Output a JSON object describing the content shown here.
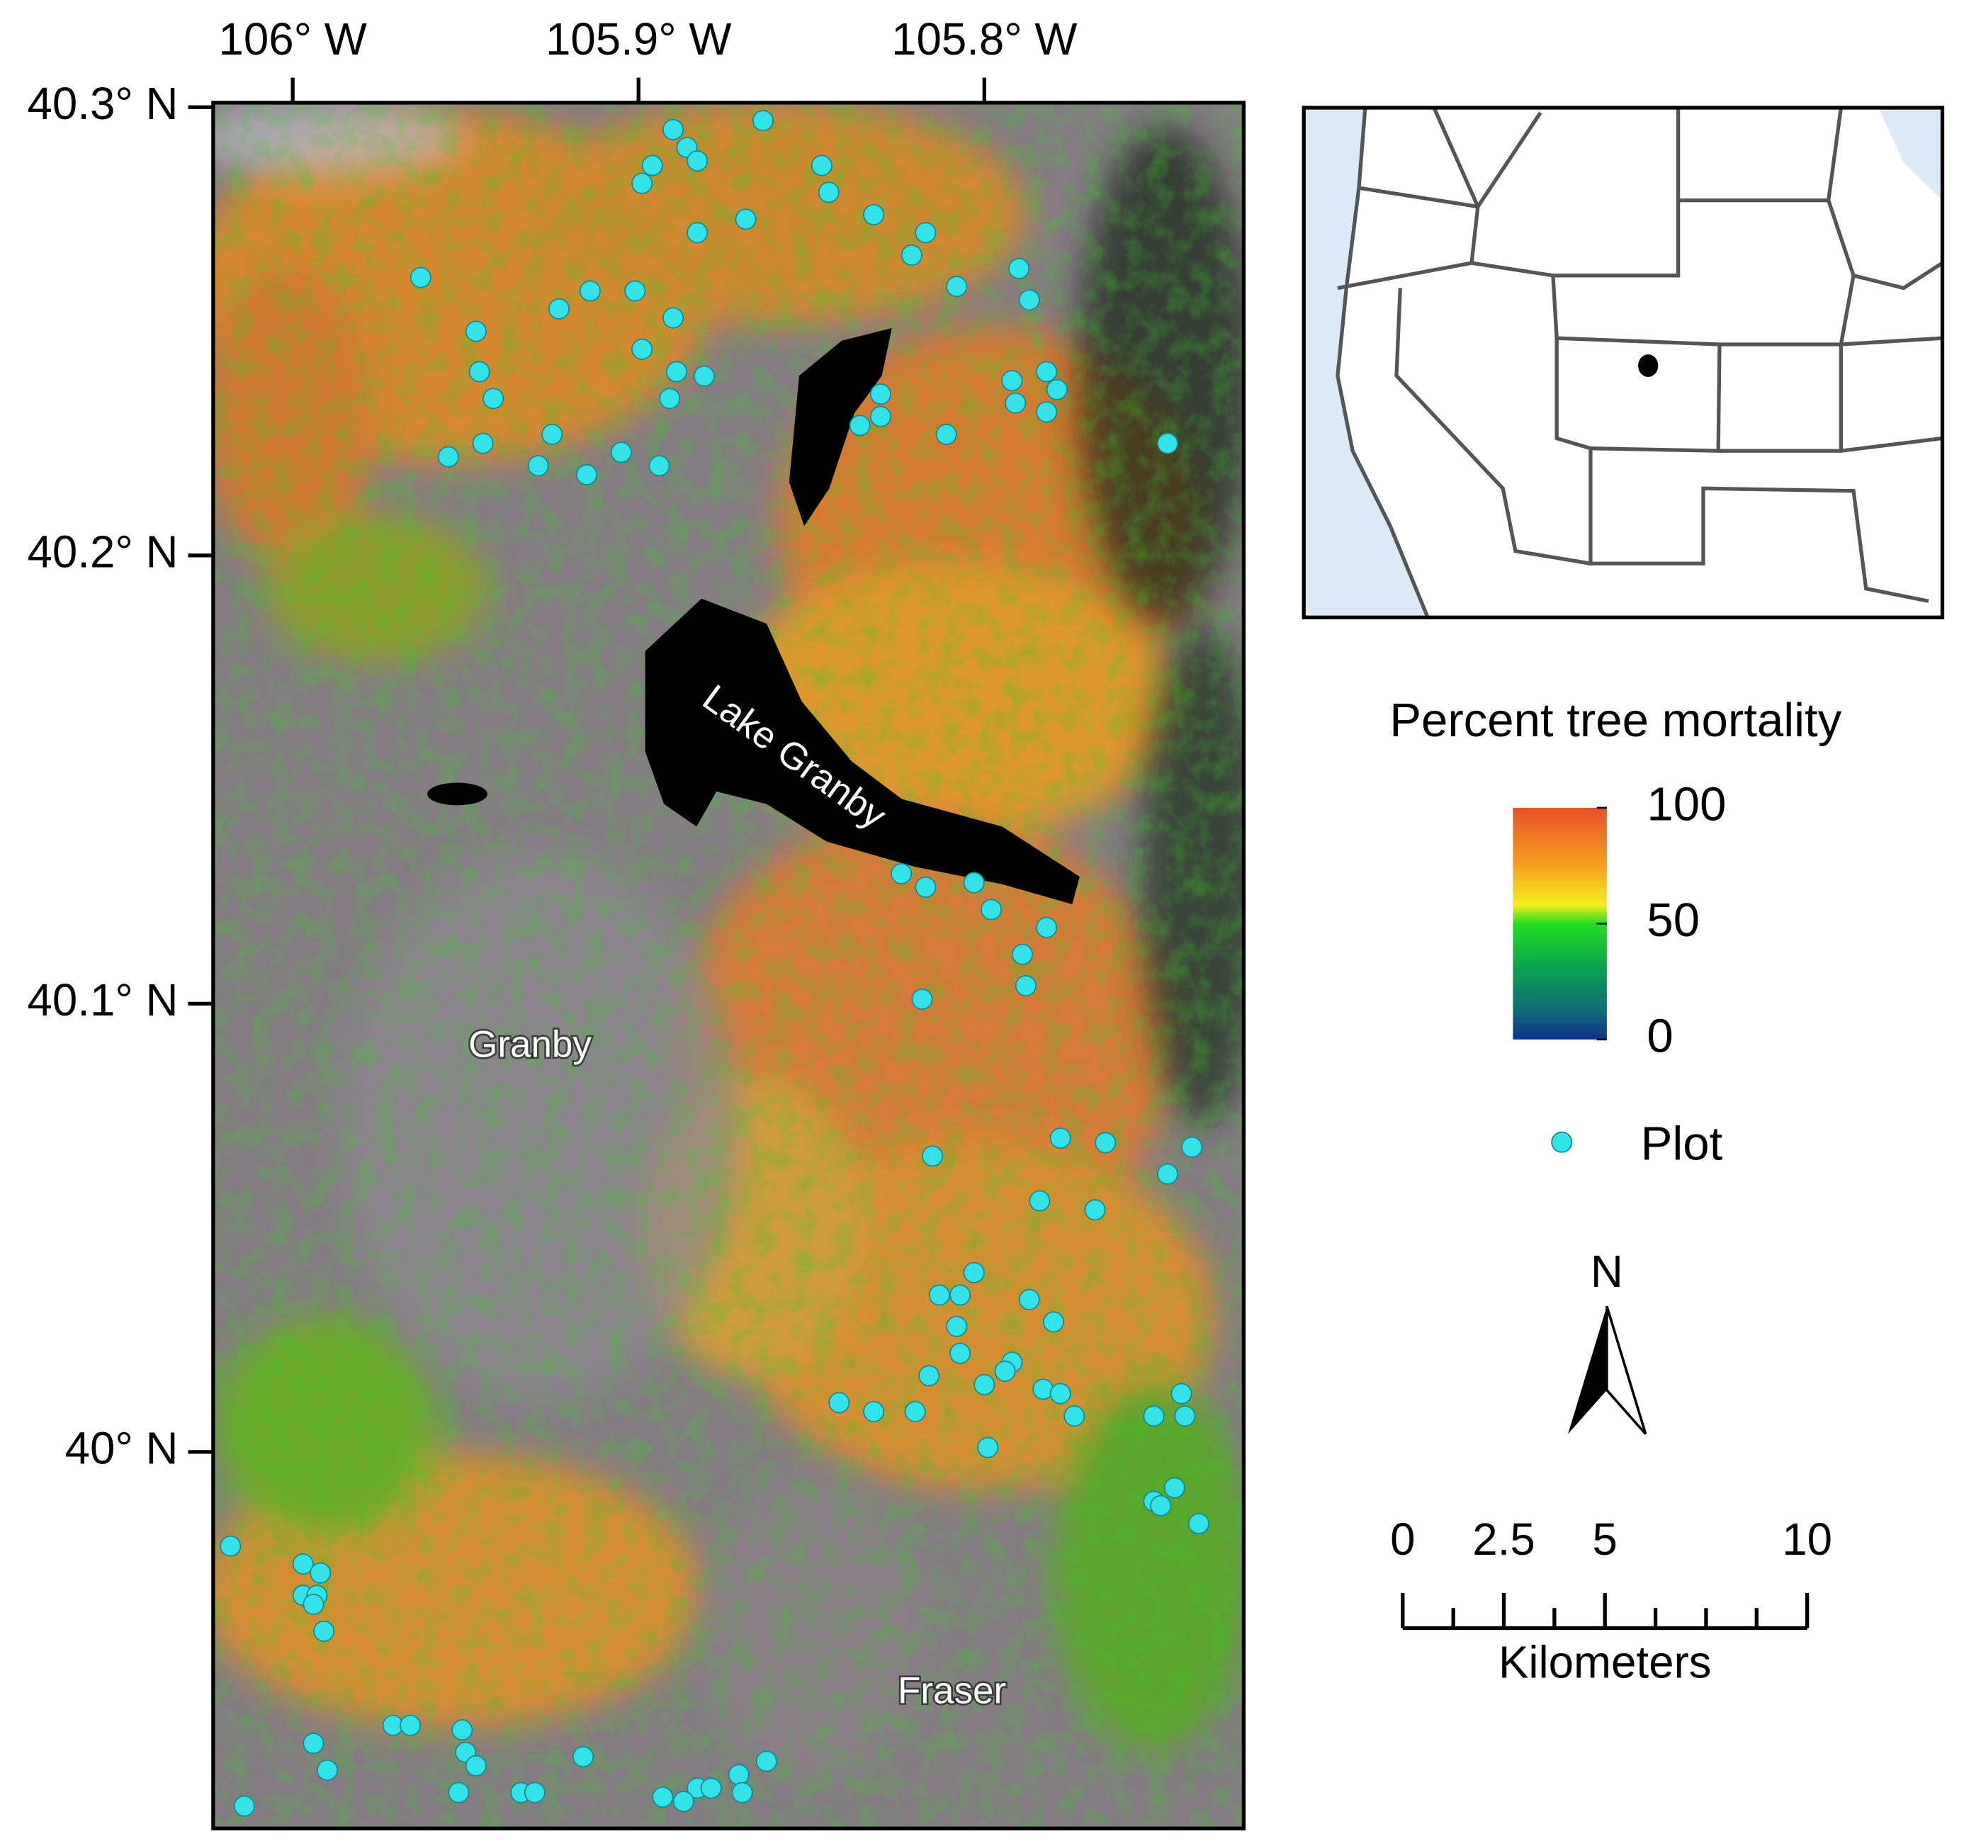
{
  "chart_data": {
    "type": "scatter",
    "xlim": [
      -106.023,
      -105.725
    ],
    "ylim": [
      39.916,
      40.301
    ],
    "xticks": [
      {
        "value": -106,
        "label": "106° W"
      },
      {
        "value": -105.9,
        "label": "105.9° W"
      },
      {
        "value": -105.8,
        "label": "105.8° W"
      }
    ],
    "yticks": [
      {
        "value": 40.3,
        "label": "40.3° N"
      },
      {
        "value": 40.2,
        "label": "40.2° N"
      },
      {
        "value": 40.1,
        "label": "40.1° N"
      },
      {
        "value": 40,
        "label": "40° N"
      }
    ],
    "places": [
      "Lake Granby",
      "Granby",
      "Fraser"
    ],
    "series": [
      {
        "name": "Plot",
        "color": "#33e3ea",
        "x": [
          -105.89,
          -105.864,
          -105.896,
          -105.899,
          -105.886,
          -105.883,
          -105.847,
          -105.845,
          -105.832,
          -105.817,
          -105.821,
          -105.869,
          -105.883,
          -105.963,
          -105.914,
          -105.923,
          -105.901,
          -105.89,
          -105.947,
          -105.899,
          -105.946,
          -105.889,
          -105.881,
          -105.942,
          -105.891,
          -105.955,
          -105.945,
          -105.925,
          -105.905,
          -105.929,
          -105.915,
          -105.894,
          -105.808,
          -105.79,
          -105.787,
          -105.792,
          -105.782,
          -105.779,
          -105.791,
          -105.782,
          -105.83,
          -105.83,
          -105.836,
          -105.811,
          -105.747,
          -105.824,
          -105.817,
          -105.803,
          -105.798,
          -105.782,
          -105.789,
          -105.788,
          -105.818,
          -105.815,
          -105.778,
          -105.765,
          -105.74,
          -105.747,
          -105.784,
          -105.768,
          -105.803,
          -105.813,
          -105.807,
          -105.787,
          -105.808,
          -105.78,
          -105.807,
          -105.792,
          -105.816,
          -105.8,
          -105.794,
          -105.783,
          -105.778,
          -105.842,
          -105.832,
          -105.82,
          -105.774,
          -105.743,
          -105.751,
          -105.742,
          -105.799,
          -105.745,
          -105.751,
          -105.749,
          -105.738,
          -106.018,
          -105.997,
          -105.992,
          -105.997,
          -105.993,
          -105.994,
          -105.991,
          -105.971,
          -105.966,
          -105.951,
          -105.994,
          -105.95,
          -105.947,
          -105.99,
          -105.916,
          -105.863,
          -105.871,
          -105.952,
          -105.934,
          -105.93,
          -105.883,
          -105.879,
          -105.893,
          -105.887,
          -105.87,
          -106.014
        ],
        "y": [
          40.295,
          40.297,
          40.287,
          40.283,
          40.291,
          40.288,
          40.287,
          40.281,
          40.276,
          40.272,
          40.267,
          40.275,
          40.272,
          40.262,
          40.259,
          40.255,
          40.259,
          40.253,
          40.25,
          40.246,
          40.241,
          40.241,
          40.24,
          40.235,
          40.235,
          40.222,
          40.225,
          40.227,
          40.223,
          40.22,
          40.218,
          40.22,
          40.26,
          40.264,
          40.257,
          40.239,
          40.241,
          40.237,
          40.234,
          40.232,
          40.236,
          40.231,
          40.229,
          40.227,
          40.225,
          40.129,
          40.126,
          40.127,
          40.121,
          40.117,
          40.111,
          40.104,
          40.101,
          40.066,
          40.07,
          40.069,
          40.068,
          40.062,
          40.056,
          40.054,
          40.04,
          40.035,
          40.035,
          40.034,
          40.028,
          40.029,
          40.022,
          40.02,
          40.017,
          40.015,
          40.018,
          40.014,
          40.013,
          40.011,
          40.009,
          40.009,
          40.008,
          40.013,
          40.008,
          40.008,
          40.001,
          39.992,
          39.989,
          39.988,
          39.984,
          39.979,
          39.975,
          39.973,
          39.968,
          39.968,
          39.966,
          39.96,
          39.939,
          39.939,
          39.938,
          39.935,
          39.933,
          39.93,
          39.929,
          39.932,
          39.931,
          39.928,
          39.924,
          39.924,
          39.924,
          39.925,
          39.925,
          39.923,
          39.922,
          39.924,
          39.921
        ]
      }
    ],
    "colorbar": {
      "title": "Percent tree mortality",
      "lim": [
        0,
        100
      ],
      "ticks": [
        0,
        50,
        100
      ]
    },
    "north": "N",
    "scalebar": {
      "unit": "Kilometers",
      "lim": [
        0,
        10
      ],
      "ticks": [
        0,
        2.5,
        5,
        10
      ],
      "minor_ticks": [
        1.25,
        3.75,
        6.25,
        7.5,
        8.75
      ]
    }
  }
}
